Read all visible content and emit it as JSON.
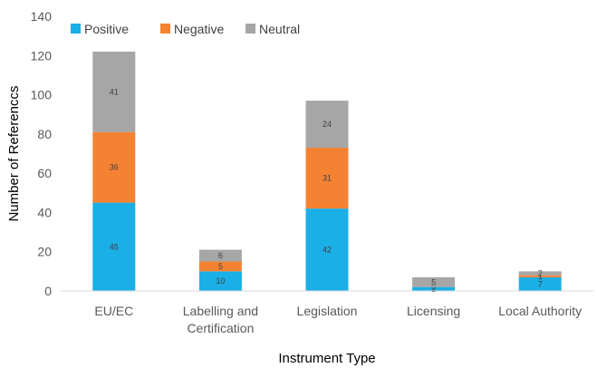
{
  "chart_data": {
    "type": "bar",
    "stacked": true,
    "title": "",
    "xlabel": "Instrument Type",
    "ylabel": "Number of Referenccs",
    "ylim": [
      0,
      140
    ],
    "yticks": [
      0,
      20,
      40,
      60,
      80,
      100,
      120,
      140
    ],
    "grid": false,
    "legend_position": "top-left",
    "categories": [
      [
        "EU/EC"
      ],
      [
        "Labelling and",
        "Certification"
      ],
      [
        "Legislation"
      ],
      [
        "Licensing"
      ],
      [
        "Local Authority"
      ]
    ],
    "series": [
      {
        "name": "Positive",
        "color": "#1aafe6",
        "values": [
          45,
          10,
          42,
          2,
          7
        ]
      },
      {
        "name": "Negative",
        "color": "#f58232",
        "values": [
          36,
          5,
          31,
          0,
          1
        ]
      },
      {
        "name": "Neutral",
        "color": "#a6a6a6",
        "values": [
          41,
          6,
          24,
          5,
          2
        ]
      }
    ]
  }
}
